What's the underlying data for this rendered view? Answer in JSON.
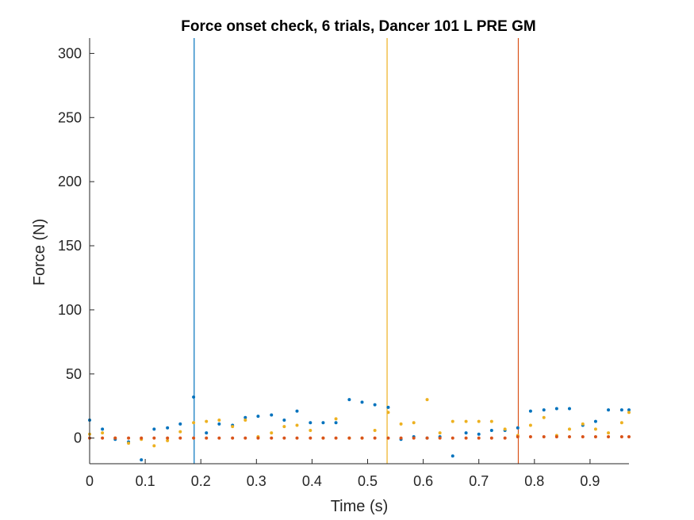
{
  "chart_data": {
    "type": "scatter",
    "title": "Force onset check, 6 trials, Dancer 101 L PRE GM",
    "xlabel": "Time (s)",
    "ylabel": "Force (N)",
    "xlim": [
      0,
      0.97
    ],
    "ylim": [
      -20,
      312
    ],
    "xticks": [
      0,
      0.1,
      0.2,
      0.3,
      0.4,
      0.5,
      0.6,
      0.7,
      0.8,
      0.9
    ],
    "xtick_labels": [
      "0",
      "0.1",
      "0.2",
      "0.3",
      "0.4",
      "0.5",
      "0.6",
      "0.7",
      "0.8",
      "0.9"
    ],
    "yticks": [
      0,
      50,
      100,
      150,
      200,
      250,
      300
    ],
    "ytick_labels": [
      "0",
      "50",
      "100",
      "150",
      "200",
      "250",
      "300"
    ],
    "grid": false,
    "series": [
      {
        "color": "#0072BD",
        "points": [
          [
            0,
            14
          ],
          [
            0.023,
            7
          ],
          [
            0.046,
            -1
          ],
          [
            0.07,
            -3
          ],
          [
            0.093,
            -17
          ],
          [
            0.116,
            7
          ],
          [
            0.14,
            8
          ],
          [
            0.163,
            11
          ],
          [
            0.187,
            32
          ],
          [
            0.21,
            4
          ],
          [
            0.233,
            11
          ],
          [
            0.257,
            10
          ],
          [
            0.28,
            16
          ],
          [
            0.303,
            17
          ],
          [
            0.327,
            18
          ],
          [
            0.35,
            14
          ],
          [
            0.373,
            21
          ],
          [
            0.397,
            12
          ],
          [
            0.42,
            12
          ],
          [
            0.443,
            12
          ],
          [
            0.467,
            30
          ],
          [
            0.49,
            28
          ],
          [
            0.513,
            26
          ],
          [
            0.537,
            24
          ],
          [
            0.56,
            -1
          ],
          [
            0.583,
            1
          ],
          [
            0.607,
            0
          ],
          [
            0.63,
            1
          ],
          [
            0.653,
            -14
          ],
          [
            0.677,
            4
          ],
          [
            0.7,
            3
          ],
          [
            0.723,
            6
          ],
          [
            0.747,
            6
          ],
          [
            0.77,
            8
          ],
          [
            0.793,
            21
          ],
          [
            0.817,
            22
          ],
          [
            0.84,
            23
          ],
          [
            0.863,
            23
          ],
          [
            0.887,
            10
          ],
          [
            0.91,
            13
          ],
          [
            0.933,
            22
          ],
          [
            0.957,
            22
          ],
          [
            0.97,
            22
          ]
        ]
      },
      {
        "color": "#EDB120",
        "points": [
          [
            0,
            3
          ],
          [
            0.023,
            4
          ],
          [
            0.046,
            0
          ],
          [
            0.07,
            -4
          ],
          [
            0.093,
            -1
          ],
          [
            0.116,
            -6
          ],
          [
            0.14,
            -2
          ],
          [
            0.163,
            5
          ],
          [
            0.187,
            12
          ],
          [
            0.21,
            13
          ],
          [
            0.233,
            14
          ],
          [
            0.257,
            9
          ],
          [
            0.28,
            14
          ],
          [
            0.303,
            1
          ],
          [
            0.327,
            4
          ],
          [
            0.35,
            9
          ],
          [
            0.373,
            10
          ],
          [
            0.397,
            6
          ],
          [
            0.42,
            0
          ],
          [
            0.443,
            15
          ],
          [
            0.467,
            0
          ],
          [
            0.49,
            0
          ],
          [
            0.513,
            6
          ],
          [
            0.537,
            20
          ],
          [
            0.56,
            11
          ],
          [
            0.583,
            12
          ],
          [
            0.607,
            30
          ],
          [
            0.63,
            4
          ],
          [
            0.653,
            13
          ],
          [
            0.677,
            13
          ],
          [
            0.7,
            13
          ],
          [
            0.723,
            13
          ],
          [
            0.747,
            7
          ],
          [
            0.77,
            2
          ],
          [
            0.793,
            10
          ],
          [
            0.817,
            16
          ],
          [
            0.84,
            2
          ],
          [
            0.863,
            7
          ],
          [
            0.887,
            11
          ],
          [
            0.91,
            7
          ],
          [
            0.933,
            4
          ],
          [
            0.957,
            12
          ],
          [
            0.97,
            20
          ]
        ]
      },
      {
        "color": "#D95319",
        "points": [
          [
            0,
            0
          ],
          [
            0.023,
            0
          ],
          [
            0.046,
            0
          ],
          [
            0.07,
            0
          ],
          [
            0.093,
            0
          ],
          [
            0.116,
            0
          ],
          [
            0.14,
            0
          ],
          [
            0.163,
            0
          ],
          [
            0.187,
            0
          ],
          [
            0.21,
            0
          ],
          [
            0.233,
            0
          ],
          [
            0.257,
            0
          ],
          [
            0.28,
            0
          ],
          [
            0.303,
            0
          ],
          [
            0.327,
            0
          ],
          [
            0.35,
            0
          ],
          [
            0.373,
            0
          ],
          [
            0.397,
            0
          ],
          [
            0.42,
            0
          ],
          [
            0.443,
            0
          ],
          [
            0.467,
            0
          ],
          [
            0.49,
            0
          ],
          [
            0.513,
            0
          ],
          [
            0.537,
            0
          ],
          [
            0.56,
            0
          ],
          [
            0.583,
            0
          ],
          [
            0.607,
            0
          ],
          [
            0.63,
            0
          ],
          [
            0.653,
            0
          ],
          [
            0.677,
            0
          ],
          [
            0.7,
            0
          ],
          [
            0.723,
            0
          ],
          [
            0.747,
            0
          ],
          [
            0.77,
            1
          ],
          [
            0.793,
            1
          ],
          [
            0.817,
            1
          ],
          [
            0.84,
            1
          ],
          [
            0.863,
            1
          ],
          [
            0.887,
            1
          ],
          [
            0.91,
            1
          ],
          [
            0.933,
            1
          ],
          [
            0.957,
            1
          ],
          [
            0.97,
            1
          ]
        ]
      }
    ],
    "onset_lines": [
      {
        "x": 0.188,
        "color": "#0072BD"
      },
      {
        "x": 0.535,
        "color": "#EDB120"
      },
      {
        "x": 0.771,
        "color": "#D95319"
      }
    ]
  }
}
